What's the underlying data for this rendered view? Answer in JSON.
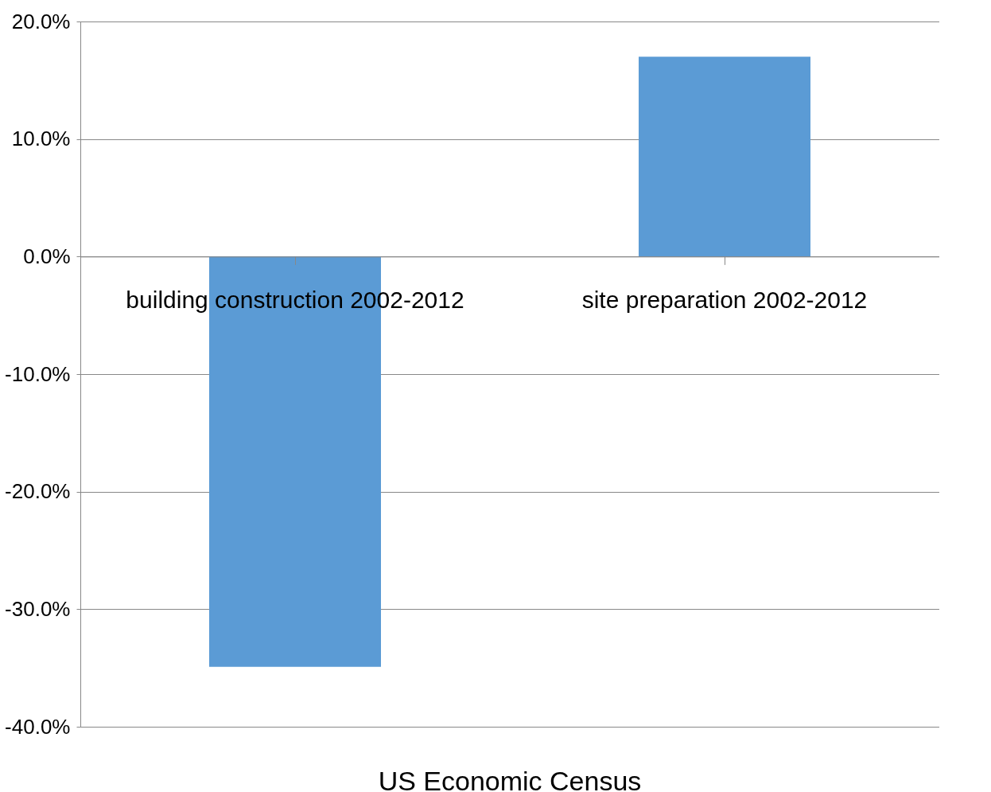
{
  "chart_data": {
    "type": "bar",
    "xlabel": "US Economic Census",
    "categories": [
      "building construction 2002-2012",
      "site preparation 2002-2012"
    ],
    "values": [
      -34.9,
      17.0
    ],
    "color": "#5b9bd5",
    "ylim": [
      -40,
      20
    ],
    "yticks": [
      {
        "value": -40,
        "label": "-40.0%"
      },
      {
        "value": -30,
        "label": "-30.0%"
      },
      {
        "value": -20,
        "label": "-20.0%"
      },
      {
        "value": -10,
        "label": "-10.0%"
      },
      {
        "value": 0,
        "label": "0.0%"
      },
      {
        "value": 10,
        "label": "10.0%"
      },
      {
        "value": 20,
        "label": "20.0%"
      }
    ],
    "grid": true
  }
}
